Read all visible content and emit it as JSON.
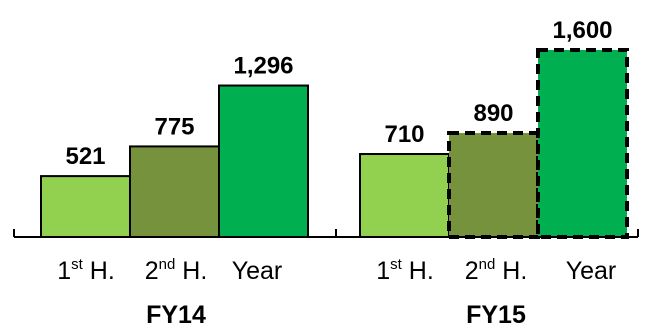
{
  "chart_data": {
    "type": "bar",
    "title": "",
    "xlabel": "",
    "ylabel": "",
    "ylim": [
      0,
      1600
    ],
    "grid": false,
    "legend": "none",
    "groups": [
      {
        "name": "FY14",
        "bars": [
          {
            "label_base": "1",
            "label_sup": "st",
            "label_rest": " H.",
            "value": 521,
            "value_label": "521",
            "color": "#92d050",
            "forecast": false
          },
          {
            "label_base": "2",
            "label_sup": "nd",
            "label_rest": " H.",
            "value": 775,
            "value_label": "775",
            "color": "#76923c",
            "forecast": false
          },
          {
            "label_base": "Year",
            "label_sup": "",
            "label_rest": "",
            "value": 1296,
            "value_label": "1,296",
            "color": "#00b050",
            "forecast": false
          }
        ]
      },
      {
        "name": "FY15",
        "bars": [
          {
            "label_base": "1",
            "label_sup": "st",
            "label_rest": " H.",
            "value": 710,
            "value_label": "710",
            "color": "#92d050",
            "forecast": false
          },
          {
            "label_base": "2",
            "label_sup": "nd",
            "label_rest": " H.",
            "value": 890,
            "value_label": "890",
            "color": "#76923c",
            "forecast": true
          },
          {
            "label_base": "Year",
            "label_sup": "",
            "label_rest": "",
            "value": 1600,
            "value_label": "1,600",
            "color": "#00b050",
            "forecast": true
          }
        ]
      }
    ]
  }
}
